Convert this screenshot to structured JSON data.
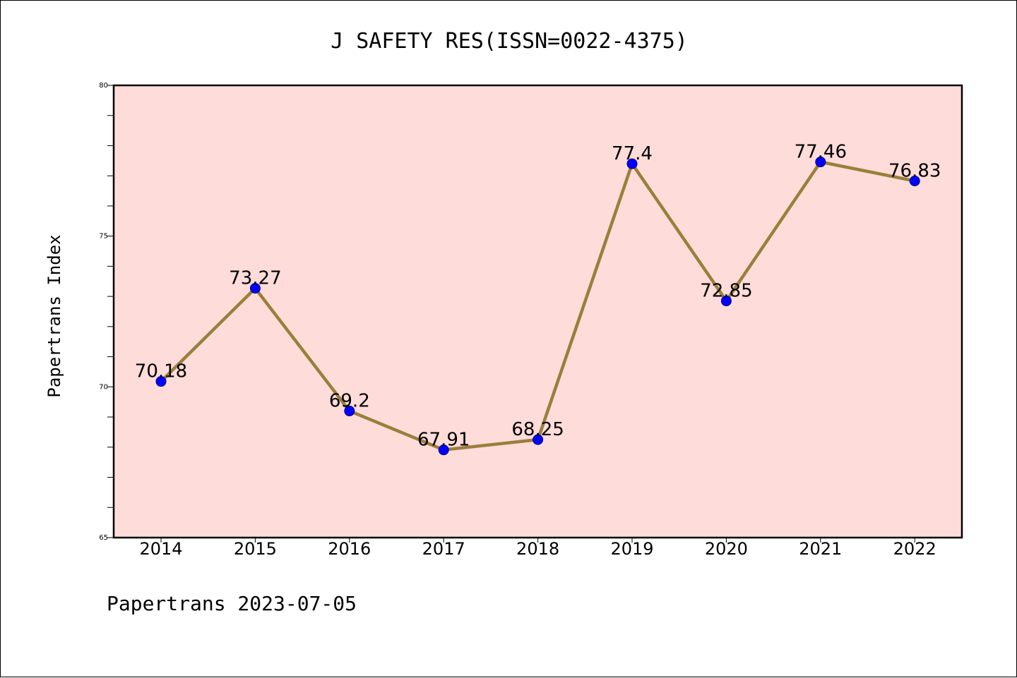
{
  "chart_data": {
    "type": "line",
    "title": "J SAFETY RES(ISSN=0022-4375)",
    "xlabel": "",
    "ylabel": "Papertrans Index",
    "categories": [
      "2014",
      "2015",
      "2016",
      "2017",
      "2018",
      "2019",
      "2020",
      "2021",
      "2022"
    ],
    "series": [
      {
        "values": [
          70.18,
          73.27,
          69.2,
          67.91,
          68.25,
          77.4,
          72.85,
          77.46,
          76.83
        ],
        "labels": [
          "70.18",
          "73.27",
          "69.2",
          "67.91",
          "68.25",
          "77.4",
          "72.85",
          "77.46",
          "76.83"
        ]
      }
    ],
    "ylim": [
      65,
      80
    ],
    "yticks": [
      "65",
      "70",
      "75",
      "80"
    ],
    "grid": false,
    "legend": "none",
    "plot_background": "#fddcda",
    "line_color": "#9a7f3a",
    "marker_color": "#0000ff",
    "footer": "Papertrans 2023-07-05"
  }
}
